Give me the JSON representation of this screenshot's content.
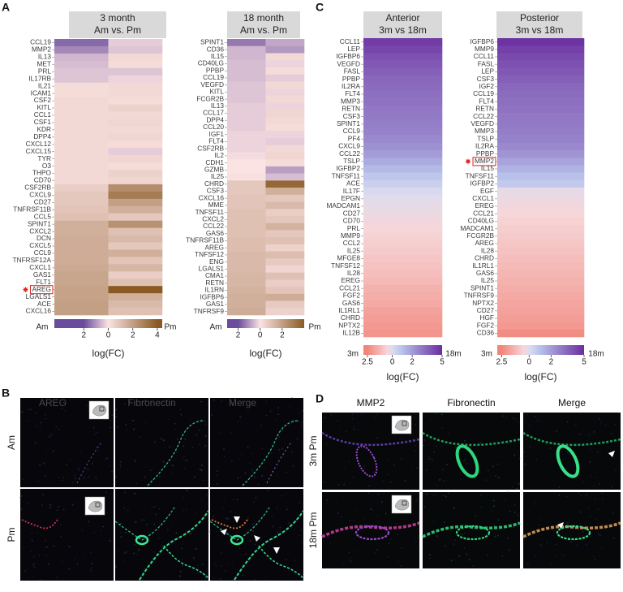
{
  "panel_labels": [
    "A",
    "B",
    "C",
    "D"
  ],
  "chart_data": [
    {
      "type": "heatmap",
      "title": "3 month",
      "subtitle": "Am vs. Pm",
      "categories": [
        "CCL19",
        "MMP2",
        "IL13",
        "MET",
        "PRL",
        "IL17RB",
        "IL21",
        "ICAM1",
        "CSF2",
        "KITL",
        "CCL1",
        "CSF1",
        "KDR",
        "DPP4",
        "CXCL12",
        "CXCL15",
        "TYR",
        "O3",
        "THPO",
        "CD70",
        "CSF2RB",
        "CXCL9",
        "CD27",
        "TNFRSF11B",
        "CCL5",
        "SPINT1",
        "CXCL2",
        "DCN",
        "CXCL5",
        "CCL9",
        "TNFRSF12A",
        "CXCL1",
        "GAS1",
        "FLT1",
        "AREG",
        "LGALS1",
        "ACE",
        "CXCL16"
      ],
      "series": [
        {
          "values": [
            -1.6,
            -1.2,
            -0.6,
            -0.5,
            -0.4,
            -0.4,
            0.2,
            0.2,
            0.3,
            0.3,
            0.3,
            0.3,
            0.3,
            0.3,
            0.3,
            0.3,
            0.3,
            0.3,
            0.3,
            0.3,
            0.6,
            0.8,
            0.8,
            0.9,
            1.0,
            1.5,
            1.5,
            1.6,
            1.6,
            1.6,
            1.6,
            1.7,
            1.8,
            1.8,
            1.9,
            1.9,
            2.0,
            2.0
          ]
        },
        {
          "values": [
            -0.3,
            -0.4,
            0.3,
            0.2,
            -0.4,
            -0.2,
            0.3,
            0.3,
            0.2,
            0.5,
            0.3,
            0.4,
            0.3,
            0.4,
            0.2,
            -0.3,
            0.4,
            0.2,
            0.5,
            0.4,
            2.5,
            3.0,
            2.0,
            1.5,
            0.8,
            2.4,
            1.0,
            1.2,
            0.8,
            1.5,
            0.9,
            1.3,
            0.6,
            1.0,
            4.0,
            1.5,
            1.2,
            1.0
          ]
        }
      ],
      "highlight": "AREG",
      "colorbar": {
        "label": "log(FC)",
        "left_label": "Am",
        "right_label": "Pm",
        "clim": [
          -4.4,
          4.4
        ],
        "ticks": [
          {
            "value": -2,
            "label": "2"
          },
          0,
          2,
          4
        ],
        "colormap": [
          {
            "value": -2,
            "color": "#6a4c9c"
          },
          {
            "value": 0,
            "color": "#fbe3e3"
          },
          {
            "value": 4,
            "color": "#8a5a24"
          }
        ]
      }
    },
    {
      "type": "heatmap",
      "title": "18 month",
      "subtitle": "Am vs. Pm",
      "categories": [
        "SPINT1",
        "CD36",
        "IL15",
        "CD40LG",
        "PPBP",
        "CCL19",
        "VEGFD",
        "KITL",
        "FCGR2B",
        "IL13",
        "CCL17",
        "DPP4",
        "CCL20",
        "IGF1",
        "FLT4",
        "CSF2RB",
        "IL2",
        "CDH1",
        "GZMB",
        "IL25",
        "CHRD",
        "CSF3",
        "CXCL16",
        "MME",
        "TNFSF11",
        "CXCL2",
        "CCL22",
        "GAS6",
        "TNFRSF11B",
        "AREG",
        "TNFSF12",
        "ENG",
        "LGALS1",
        "CMA1",
        "RETN",
        "IL1RN",
        "IGFBP6",
        "GAS1",
        "TNFRSF9"
      ],
      "series": [
        {
          "values": [
            -1.4,
            -0.6,
            -0.6,
            -0.5,
            -0.5,
            -0.5,
            -0.4,
            -0.4,
            -0.4,
            -0.3,
            -0.3,
            -0.3,
            -0.3,
            -0.2,
            -0.2,
            -0.2,
            -0.1,
            0,
            0,
            0.1,
            0.8,
            0.8,
            0.9,
            0.9,
            1.0,
            1.0,
            1.0,
            1.0,
            1.1,
            1.1,
            1.2,
            1.2,
            1.2,
            1.3,
            1.3,
            1.4,
            1.5,
            1.5,
            1.6
          ]
        },
        {
          "values": [
            -0.8,
            -1.0,
            0.3,
            -0.2,
            0.2,
            -0.3,
            0.3,
            -0.2,
            0.3,
            -0.2,
            0.4,
            0.3,
            0.2,
            -0.2,
            -0.3,
            0.3,
            0.4,
            0.2,
            -0.9,
            -0.5,
            3.6,
            1.5,
            0.8,
            1.2,
            0.6,
            0.8,
            1.4,
            0.8,
            1.0,
            0.5,
            1.1,
            0.7,
            0.4,
            1.0,
            0.6,
            0.9,
            1.6,
            0.7,
            0.5
          ]
        }
      ],
      "colorbar": {
        "label": "log(FC)",
        "left_label": "Am",
        "right_label": "Pm",
        "clim": [
          -3,
          4
        ],
        "ticks": [
          {
            "value": -2,
            "label": "2"
          },
          0,
          2
        ],
        "colormap": [
          {
            "value": -2,
            "color": "#6a4c9c"
          },
          {
            "value": 0,
            "color": "#fbe3e3"
          },
          {
            "value": 4,
            "color": "#8a5a24"
          }
        ]
      }
    },
    {
      "type": "heatmap",
      "title": "Anterior",
      "subtitle": "3m vs 18m",
      "categories": [
        "CCL11",
        "LEP",
        "IGFBP6",
        "VEGFD",
        "FASL",
        "PPBP",
        "IL2RA",
        "FLT4",
        "MMP3",
        "RETN",
        "CSF3",
        "SPINT1",
        "CCL9",
        "PF4",
        "CXCL9",
        "CCL22",
        "TSLP",
        "IGFBP2",
        "TNFSF11",
        "ACE",
        "IL17F",
        "EPGN",
        "MADCAM1",
        "CD27",
        "CD70",
        "PRL",
        "MMP9",
        "CCL2",
        "IL25",
        "MFGE8",
        "TNFSF12",
        "IL28",
        "EREG",
        "CCL21",
        "FGF2",
        "GAS6",
        "IL1RL1",
        "CHRD",
        "NPTX2",
        "IL12B"
      ],
      "series": [
        {
          "values": [
            4.6,
            4.3,
            4.0,
            3.8,
            3.6,
            3.4,
            3.3,
            3.2,
            3.1,
            3.0,
            2.9,
            2.8,
            2.7,
            2.5,
            2.3,
            2.0,
            1.6,
            1.2,
            0.8,
            0.5,
            0.1,
            -0.1,
            -0.2,
            -0.3,
            -0.4,
            -0.5,
            -0.6,
            -0.7,
            -0.8,
            -0.9,
            -1.0,
            -1.1,
            -1.2,
            -1.4,
            -1.5,
            -1.6,
            -1.8,
            -1.9,
            -2.0,
            -2.1
          ]
        }
      ],
      "colorbar": {
        "label": "log(FC)",
        "left_label": "3m",
        "right_label": "18m",
        "clim": [
          -2.9,
          5
        ],
        "ticks": [
          {
            "value": -2.5,
            "label": "2.5"
          },
          0,
          2,
          5
        ],
        "colormap": [
          {
            "value": -2.5,
            "color": "#f2857a"
          },
          {
            "value": -0.5,
            "color": "#f6d6d8"
          },
          {
            "value": 0,
            "color": "#dcdcef"
          },
          {
            "value": 1,
            "color": "#b7c1ea"
          },
          {
            "value": 5,
            "color": "#6a2c9e"
          }
        ]
      }
    },
    {
      "type": "heatmap",
      "title": "Posterior",
      "subtitle": "3m vs 18m",
      "categories": [
        "IGFBP6",
        "MMP9",
        "CCL11",
        "FASL",
        "LEP",
        "CSF3",
        "IGF2",
        "CCL19",
        "FLT4",
        "RETN",
        "CCL22",
        "VEGFD",
        "MMP3",
        "TSLP",
        "IL2RA",
        "PPBP",
        "MMP2",
        "IL15",
        "TNFSF11",
        "IGFBP2",
        "EGF",
        "CXCL1",
        "EREG",
        "CCL21",
        "CD40LG",
        "MADCAM1",
        "FCGR2B",
        "AREG",
        "IL28",
        "CHRD",
        "IL1RL1",
        "GAS6",
        "IL25",
        "SPINT1",
        "TNFRSF9",
        "NPTX2",
        "CD27",
        "HGF",
        "FGF2",
        "CD36"
      ],
      "series": [
        {
          "values": [
            4.8,
            4.5,
            4.2,
            4.0,
            3.8,
            3.6,
            3.4,
            3.3,
            3.2,
            3.1,
            3.0,
            2.9,
            2.8,
            2.7,
            2.5,
            2.2,
            1.8,
            1.4,
            1.0,
            0.7,
            -0.2,
            -0.3,
            -0.4,
            -0.5,
            -0.6,
            -0.7,
            -0.8,
            -0.9,
            -1.0,
            -1.1,
            -1.2,
            -1.3,
            -1.4,
            -1.5,
            -1.6,
            -1.7,
            -1.8,
            -1.9,
            -2.0,
            -2.3
          ]
        }
      ],
      "highlight": "MMP2",
      "colorbar": {
        "label": "log(FC)",
        "left_label": "3m",
        "right_label": "18m",
        "clim": [
          -2.9,
          5
        ],
        "ticks": [
          {
            "value": -2.5,
            "label": "2.5"
          },
          0,
          2,
          5
        ],
        "colormap": [
          {
            "value": -2.5,
            "color": "#f2857a"
          },
          {
            "value": -0.5,
            "color": "#f6d6d8"
          },
          {
            "value": 0,
            "color": "#dcdcef"
          },
          {
            "value": 1,
            "color": "#b7c1ea"
          },
          {
            "value": 5,
            "color": "#6a2c9e"
          }
        ]
      }
    }
  ],
  "panel_b": {
    "columns": [
      "AREG",
      "Fibronectin",
      "Merge"
    ],
    "rows": [
      "Am",
      "Pm"
    ]
  },
  "panel_d": {
    "columns": [
      "MMP2",
      "Fibronectin",
      "Merge"
    ],
    "rows": [
      "3m Pm",
      "18m Pm"
    ]
  }
}
